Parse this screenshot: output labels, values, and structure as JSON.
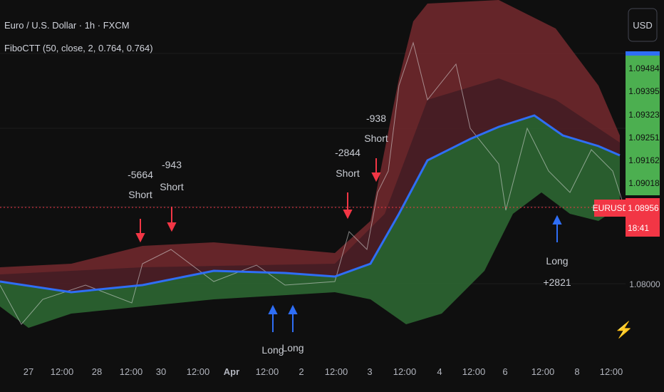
{
  "header": {
    "symbol": "Euro / U.S. Dollar · 1h · FXCM",
    "indicator": "FiboCTT (50, close, 2, 0.764, 0.764)",
    "currency": "USD"
  },
  "price_axis": {
    "levels": [
      "1.09484",
      "1.09395",
      "1.09323",
      "1.09251",
      "1.09162",
      "1.09018"
    ],
    "current": "1.08956",
    "symbol_tag": "EURUSD",
    "countdown": "18:41",
    "lower": "1.08000"
  },
  "time_axis": [
    "27",
    "12:00",
    "28",
    "12:00",
    "30",
    "12:00",
    "Apr",
    "12:00",
    "2",
    "12:00",
    "3",
    "12:00",
    "4",
    "12:00",
    "6",
    "12:00",
    "8",
    "12:00"
  ],
  "signals": [
    {
      "value": "-5664",
      "label": "Short"
    },
    {
      "value": "-943",
      "label": "Short"
    },
    {
      "value": "-2844",
      "label": "Short"
    },
    {
      "value": "-938",
      "label": "Short"
    },
    {
      "value": "+2821",
      "label": "Long"
    },
    {
      "label": "Long"
    },
    {
      "label": "Long"
    }
  ]
}
